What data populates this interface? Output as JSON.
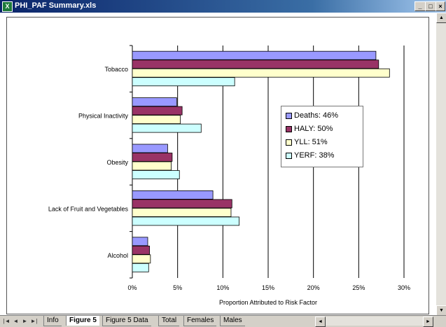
{
  "window": {
    "title": "PHI_PAF Summary.xls",
    "controls": {
      "minimize": "_",
      "maximize": "□",
      "close": "×"
    }
  },
  "legend": {
    "items": [
      {
        "label": "Deaths: 46%",
        "color": "#9999ff"
      },
      {
        "label": "HALY: 50%",
        "color": "#993366"
      },
      {
        "label": "YLL: 51%",
        "color": "#ffffcc"
      },
      {
        "label": "YERF: 38%",
        "color": "#ccffff"
      }
    ]
  },
  "sheet_tabs": {
    "nav": [
      "|◄",
      "◄",
      "►",
      "►|"
    ],
    "tabs": [
      "Info",
      "Figure 5",
      "Figure 5 Data",
      "Total",
      "Females",
      "Males"
    ],
    "active": "Figure 5"
  },
  "chart_data": {
    "type": "bar",
    "orientation": "horizontal",
    "categories": [
      "Tobacco",
      "Physical Inactivity",
      "Obesity",
      "Lack of Fruit and Vegetables",
      "Alcohol"
    ],
    "series": [
      {
        "name": "Deaths: 46%",
        "color": "#9999ff",
        "values": [
          0.269,
          0.049,
          0.039,
          0.089,
          0.017
        ]
      },
      {
        "name": "HALY: 50%",
        "color": "#993366",
        "values": [
          0.272,
          0.055,
          0.044,
          0.11,
          0.019
        ]
      },
      {
        "name": "YLL: 51%",
        "color": "#ffffcc",
        "values": [
          0.284,
          0.053,
          0.043,
          0.109,
          0.02
        ]
      },
      {
        "name": "YERF: 38%",
        "color": "#ccffff",
        "values": [
          0.113,
          0.076,
          0.052,
          0.118,
          0.018
        ]
      }
    ],
    "xlabel": "Proportion Attributed to Risk Factor",
    "xlim": [
      0,
      0.3
    ],
    "xticks": [
      "0%",
      "5%",
      "10%",
      "15%",
      "20%",
      "25%",
      "30%"
    ],
    "grid": "vertical",
    "legend_position": "right"
  }
}
